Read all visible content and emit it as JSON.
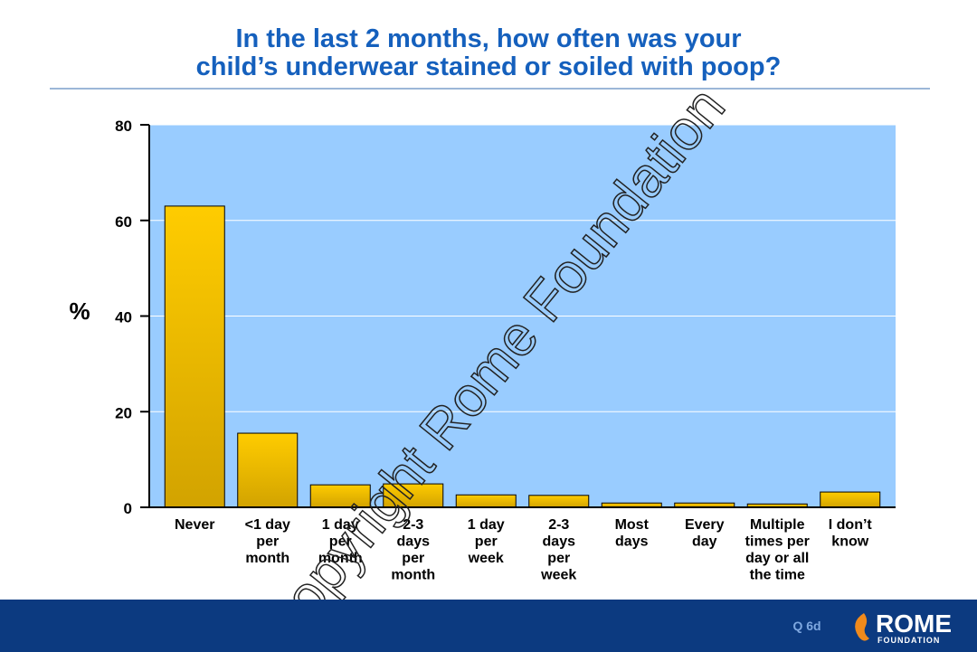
{
  "chart_data": {
    "type": "bar",
    "title": "In the last 2 months, how often was your\nchild’s underwear stained or soiled with poop?",
    "y_label": "%",
    "categories": [
      "Never",
      "<1 day\nper\nmonth",
      "1 day\nper\nmonth",
      "2-3\ndays\nper\nmonth",
      "1 day\nper\nweek",
      "2-3\ndays\nper\nweek",
      "Most\ndays",
      "Every\nday",
      "Multiple\ntimes per\nday or all\nthe time",
      "I don’t\nknow"
    ],
    "values": [
      63,
      15.5,
      4.7,
      4.9,
      2.6,
      2.5,
      0.9,
      0.9,
      0.7,
      3.2
    ],
    "color": "#ffcc00",
    "ylim": [
      0,
      80
    ],
    "yticks": [
      0,
      20,
      40,
      60,
      80
    ],
    "grid": true,
    "watermark": "Copyright Rome Foundation",
    "footer_code": "Q 6d",
    "logo": "ROME",
    "logo_sub": "FOUNDATION"
  }
}
